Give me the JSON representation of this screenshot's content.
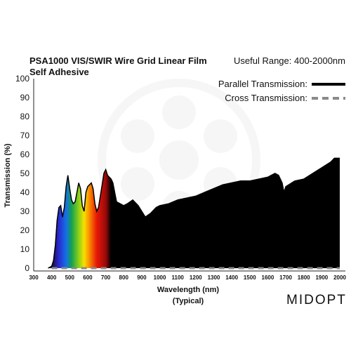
{
  "chart_data": {
    "type": "area",
    "title": "PSA1000 VIS/SWIR Wire Grid Linear Film",
    "subtitle": "Self Adhesive",
    "range_note": "Useful Range: 400-2000nm",
    "xlabel": "Wavelength (nm)",
    "xlabel_sub": "(Typical)",
    "ylabel": "Transmission (%)",
    "xlim": [
      300,
      2000
    ],
    "ylim": [
      0,
      100
    ],
    "x_ticks": [
      "300",
      "400",
      "500",
      "600",
      "700",
      "800",
      "900",
      "1000",
      "1100",
      "1200",
      "1300",
      "1400",
      "1500",
      "1600",
      "1700",
      "1800",
      "1900",
      "2000"
    ],
    "y_ticks": [
      "0",
      "10",
      "20",
      "30",
      "40",
      "50",
      "60",
      "70",
      "80",
      "90",
      "100"
    ],
    "legend_position": "top-right",
    "series": [
      {
        "name": "Parallel Transmission:",
        "style": "solid",
        "color": "#000000",
        "x": [
          380,
          400,
          410,
          420,
          430,
          440,
          450,
          460,
          470,
          480,
          490,
          500,
          510,
          520,
          530,
          540,
          550,
          560,
          570,
          580,
          590,
          600,
          610,
          620,
          630,
          640,
          650,
          660,
          670,
          680,
          690,
          700,
          710,
          720,
          730,
          740,
          750,
          760,
          780,
          800,
          820,
          850,
          880,
          900,
          920,
          950,
          980,
          1000,
          1050,
          1100,
          1150,
          1200,
          1250,
          1300,
          1350,
          1400,
          1450,
          1500,
          1550,
          1600,
          1620,
          1640,
          1660,
          1680,
          1690,
          1700,
          1750,
          1800,
          1850,
          1900,
          1950,
          1970,
          1990,
          2000
        ],
        "y": [
          0,
          1,
          4,
          12,
          25,
          32,
          33,
          27,
          32,
          43,
          49,
          42,
          36,
          34,
          35,
          40,
          45,
          42,
          33,
          30,
          40,
          43,
          44,
          45,
          42,
          34,
          30,
          32,
          38,
          44,
          50,
          52,
          49,
          48,
          47,
          45,
          40,
          35,
          34,
          33,
          34,
          36,
          33,
          30,
          27,
          29,
          32,
          33,
          34,
          36,
          37,
          38,
          40,
          42,
          44,
          45,
          46,
          46,
          47,
          48,
          49,
          50,
          49,
          45,
          40,
          43,
          46,
          47,
          50,
          53,
          56,
          58,
          58,
          58
        ]
      },
      {
        "name": "Cross Transmission:",
        "style": "dashed",
        "color": "#8a8a8a",
        "x": [
          400,
          2000
        ],
        "y": [
          0,
          0
        ]
      }
    ],
    "fill_gradient_stops": [
      {
        "x": 400,
        "color": "#1a0a3c"
      },
      {
        "x": 440,
        "color": "#2a2ad0"
      },
      {
        "x": 480,
        "color": "#1570e8"
      },
      {
        "x": 510,
        "color": "#12a050"
      },
      {
        "x": 550,
        "color": "#8ad018"
      },
      {
        "x": 580,
        "color": "#f8e000"
      },
      {
        "x": 610,
        "color": "#f88a00"
      },
      {
        "x": 650,
        "color": "#e81808"
      },
      {
        "x": 700,
        "color": "#9a0a0a"
      },
      {
        "x": 730,
        "color": "#000000"
      }
    ]
  },
  "brand": {
    "name": "MIDOPT"
  }
}
